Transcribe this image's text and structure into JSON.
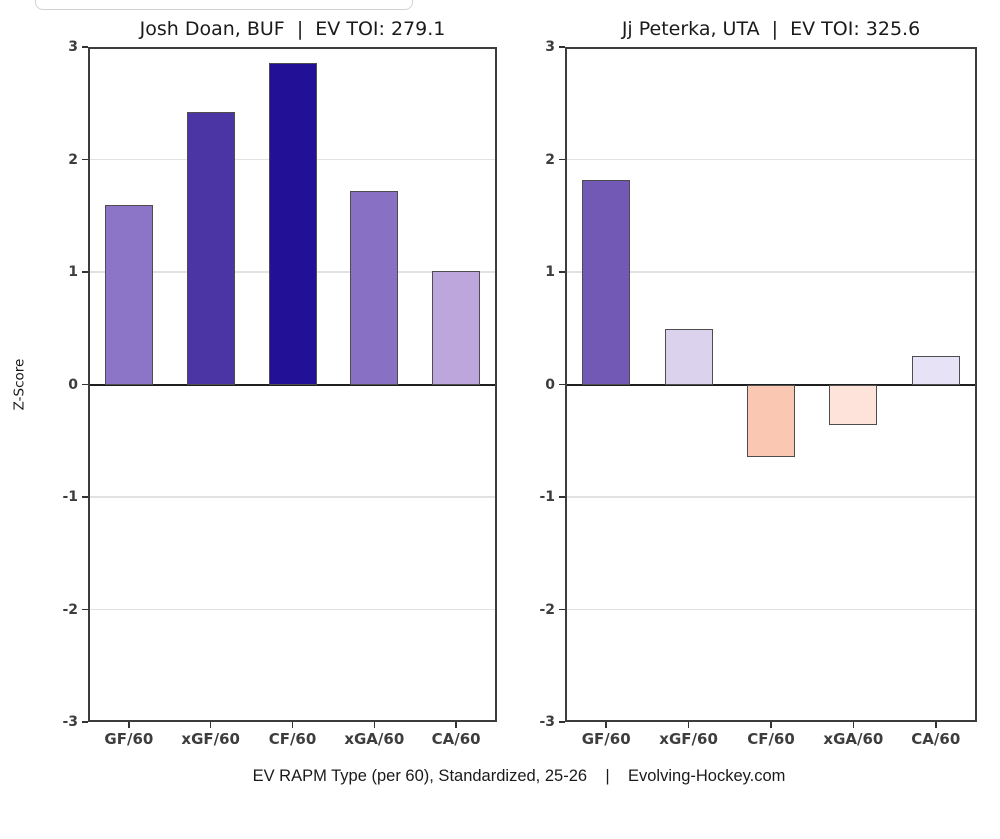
{
  "figure": {
    "background": "#ffffff",
    "caption": "EV RAPM Type (per 60), Standardized, 25-26    |    Evolving-Hockey.com"
  },
  "chart_data": [
    {
      "type": "bar",
      "title": "Josh Doan, BUF  |  EV TOI: 279.1",
      "player": "Josh Doan",
      "team": "BUF",
      "ev_toi": "279.1",
      "ylabel": "Z-Score",
      "xlabel": "",
      "ylim": [
        -3,
        3
      ],
      "yticks": [
        "3",
        "2",
        "1",
        "0",
        "-1",
        "-2",
        "-3"
      ],
      "grid_values": [
        2,
        1,
        -1,
        -2
      ],
      "grid": "horizontal-major",
      "legend_position": "none",
      "categories": [
        "GF/60",
        "xGF/60",
        "CF/60",
        "xGA/60",
        "CA/60"
      ],
      "values": [
        1.6,
        2.42,
        2.86,
        1.72,
        1.01
      ],
      "bar_colors": [
        "#8C74C6",
        "#4B34A4",
        "#221097",
        "#8870C4",
        "#BCA6DC"
      ]
    },
    {
      "type": "bar",
      "title": "Jj Peterka, UTA  |  EV TOI: 325.6",
      "player": "Jj Peterka",
      "team": "UTA",
      "ev_toi": "325.6",
      "ylabel": "",
      "xlabel": "",
      "ylim": [
        -3,
        3
      ],
      "yticks": [
        "3",
        "2",
        "1",
        "0",
        "-1",
        "-2",
        "-3"
      ],
      "grid_values": [
        2,
        1,
        -1,
        -2
      ],
      "grid": "horizontal-major",
      "legend_position": "none",
      "categories": [
        "GF/60",
        "xGF/60",
        "CF/60",
        "xGA/60",
        "CA/60"
      ],
      "values": [
        1.82,
        0.49,
        -0.64,
        -0.36,
        0.25
      ],
      "bar_colors": [
        "#7159B5",
        "#DBD2EE",
        "#FAC7B2",
        "#FDE3DA",
        "#E7E2F6"
      ]
    }
  ],
  "style": {
    "bar_border_color": "#4d4d4d",
    "panel_border_color": "#3c3c3c",
    "gridline_color": "#e2e2e2",
    "zero_line_color": "#1f1f1f",
    "tick_label_color": "#3d3d3d",
    "title_color": "#1a1a1a"
  }
}
